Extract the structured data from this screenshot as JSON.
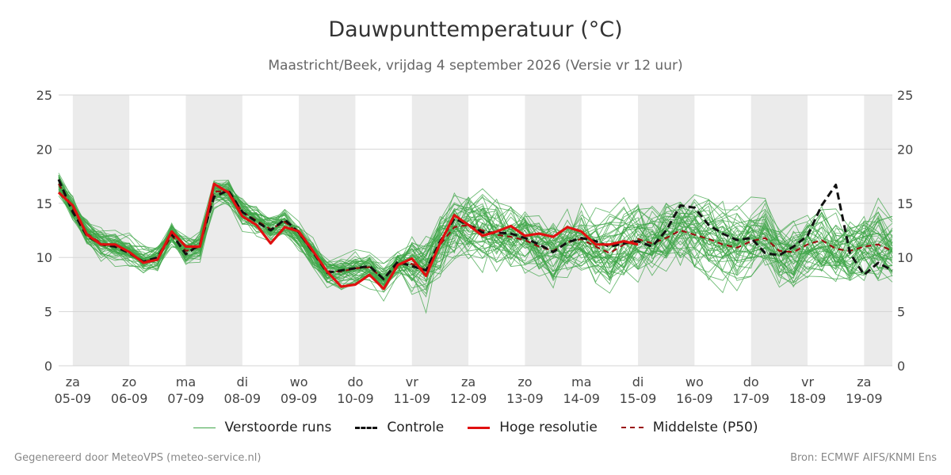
{
  "chart_data": {
    "type": "line",
    "title": "Dauwpunttemperatuur (°C)",
    "subtitle": "Maastricht/Beek, vrijdag  4 september 2026 (Versie vr 12 uur)",
    "ylim": [
      0,
      25
    ],
    "yticks": [
      0,
      5,
      10,
      15,
      20,
      25
    ],
    "grid": true,
    "x_index_range": [
      -0.25,
      14.5
    ],
    "day_labels": [
      {
        "day": "za",
        "date": "05-09"
      },
      {
        "day": "zo",
        "date": "06-09"
      },
      {
        "day": "ma",
        "date": "07-09"
      },
      {
        "day": "di",
        "date": "08-09"
      },
      {
        "day": "wo",
        "date": "09-09"
      },
      {
        "day": "do",
        "date": "10-09"
      },
      {
        "day": "vr",
        "date": "11-09"
      },
      {
        "day": "za",
        "date": "12-09"
      },
      {
        "day": "zo",
        "date": "13-09"
      },
      {
        "day": "ma",
        "date": "14-09"
      },
      {
        "day": "di",
        "date": "15-09"
      },
      {
        "day": "wo",
        "date": "16-09"
      },
      {
        "day": "do",
        "date": "17-09"
      },
      {
        "day": "vr",
        "date": "18-09"
      },
      {
        "day": "za",
        "date": "19-09"
      }
    ],
    "shaded_days": [
      0,
      2,
      4,
      6,
      8,
      10,
      12,
      14
    ],
    "legend_position": "bottom",
    "series": [
      {
        "name": "Controle",
        "color": "#111111",
        "style": "dashed",
        "x": [
          -0.25,
          0,
          0.25,
          0.5,
          0.75,
          1,
          1.25,
          1.5,
          1.75,
          2,
          2.25,
          2.5,
          2.75,
          3,
          3.25,
          3.5,
          3.75,
          4,
          4.25,
          4.5,
          4.75,
          5,
          5.25,
          5.5,
          5.75,
          6,
          6.25,
          6.5,
          6.75,
          7,
          7.25,
          7.5,
          7.75,
          8,
          8.25,
          8.5,
          8.75,
          9,
          9.25,
          9.5,
          9.75,
          10,
          10.25,
          10.5,
          10.75,
          11,
          11.25,
          11.5,
          11.75,
          12,
          12.25,
          12.5,
          12.75,
          13,
          13.25,
          13.5,
          13.75,
          14,
          14.25,
          14.5
        ],
        "values": [
          17.2,
          14.2,
          12.0,
          11.2,
          11.0,
          10.4,
          9.6,
          10.0,
          12.2,
          10.3,
          11.2,
          15.6,
          16.2,
          14.2,
          13.3,
          12.5,
          13.5,
          12.3,
          10.5,
          8.6,
          8.8,
          9.0,
          9.2,
          8.0,
          9.6,
          9.2,
          8.8,
          11.5,
          13.6,
          13.0,
          12.3,
          12.3,
          12.2,
          11.8,
          11.2,
          10.5,
          11.4,
          11.8,
          11.5,
          11.0,
          11.3,
          11.5,
          11.0,
          12.5,
          14.8,
          14.6,
          13.0,
          12.2,
          11.6,
          11.8,
          10.4,
          10.2,
          11.0,
          12.0,
          14.8,
          16.7,
          10.4,
          8.4,
          9.5,
          8.8
        ]
      },
      {
        "name": "Hoge resolutie",
        "color": "#e01010",
        "style": "solid",
        "x": [
          -0.25,
          0,
          0.25,
          0.5,
          0.75,
          1,
          1.25,
          1.5,
          1.75,
          2,
          2.25,
          2.5,
          2.75,
          3,
          3.25,
          3.5,
          3.75,
          4,
          4.25,
          4.5,
          4.75,
          5,
          5.25,
          5.5,
          5.75,
          6,
          6.25,
          6.5,
          6.75,
          7,
          7.25,
          7.5,
          7.75,
          8,
          8.25,
          8.5,
          8.75,
          9,
          9.25,
          9.5,
          9.75,
          10
        ],
        "values": [
          16.0,
          14.8,
          12.1,
          11.2,
          11.2,
          10.5,
          9.5,
          9.8,
          12.4,
          11.0,
          11.0,
          16.8,
          16.0,
          13.8,
          13.0,
          11.3,
          12.8,
          12.4,
          10.6,
          8.7,
          7.3,
          7.5,
          8.4,
          7.1,
          9.3,
          9.9,
          8.3,
          11.3,
          13.9,
          13.0,
          12.0,
          12.4,
          12.9,
          12.0,
          12.2,
          11.9,
          12.8,
          12.4,
          11.2,
          11.2,
          11.5,
          11.2
        ]
      },
      {
        "name": "Middelste (P50)",
        "color": "#9a1010",
        "style": "dashed",
        "x": [
          -0.25,
          0,
          0.25,
          0.5,
          0.75,
          1,
          1.25,
          1.5,
          1.75,
          2,
          2.25,
          2.5,
          2.75,
          3,
          3.25,
          3.5,
          3.75,
          4,
          4.25,
          4.5,
          4.75,
          5,
          5.25,
          5.5,
          5.75,
          6,
          6.25,
          6.5,
          6.75,
          7,
          7.25,
          7.5,
          7.75,
          8,
          8.25,
          8.5,
          8.75,
          9,
          9.25,
          9.5,
          9.75,
          10,
          10.25,
          10.5,
          10.75,
          11,
          11.25,
          11.5,
          11.75,
          12,
          12.25,
          12.5,
          12.75,
          13,
          13.25,
          13.5,
          13.75,
          14,
          14.25,
          14.5
        ],
        "values": [
          16.8,
          14.5,
          12.2,
          11.3,
          11.0,
          10.5,
          9.6,
          9.9,
          12.0,
          10.6,
          11.0,
          16.1,
          16.1,
          14.2,
          13.4,
          12.6,
          13.3,
          12.2,
          10.5,
          8.7,
          8.7,
          9.0,
          9.1,
          8.0,
          9.4,
          9.4,
          8.8,
          11.2,
          12.8,
          13.0,
          12.5,
          12.1,
          11.9,
          11.6,
          11.0,
          10.6,
          11.4,
          11.7,
          11.0,
          10.4,
          11.2,
          11.7,
          11.3,
          11.8,
          12.5,
          12.1,
          11.7,
          11.2,
          10.9,
          11.5,
          11.8,
          10.6,
          10.5,
          11.2,
          11.6,
          10.8,
          10.6,
          11.0,
          11.2,
          10.6
        ]
      }
    ],
    "ensemble": {
      "name": "Verstoorde runs",
      "color": "#3fa648",
      "member_count": 50,
      "note_spread": "members follow the main trend closely until 11-09, then diverge between about 4 and 20"
    },
    "legend": [
      "Verstoorde runs",
      "Controle",
      "Hoge resolutie",
      "Middelste (P50)"
    ]
  },
  "footer": {
    "left": "Gegenereerd door MeteoVPS (meteo-service.nl)",
    "right": "Bron: ECMWF AIFS/KNMI Ens"
  }
}
